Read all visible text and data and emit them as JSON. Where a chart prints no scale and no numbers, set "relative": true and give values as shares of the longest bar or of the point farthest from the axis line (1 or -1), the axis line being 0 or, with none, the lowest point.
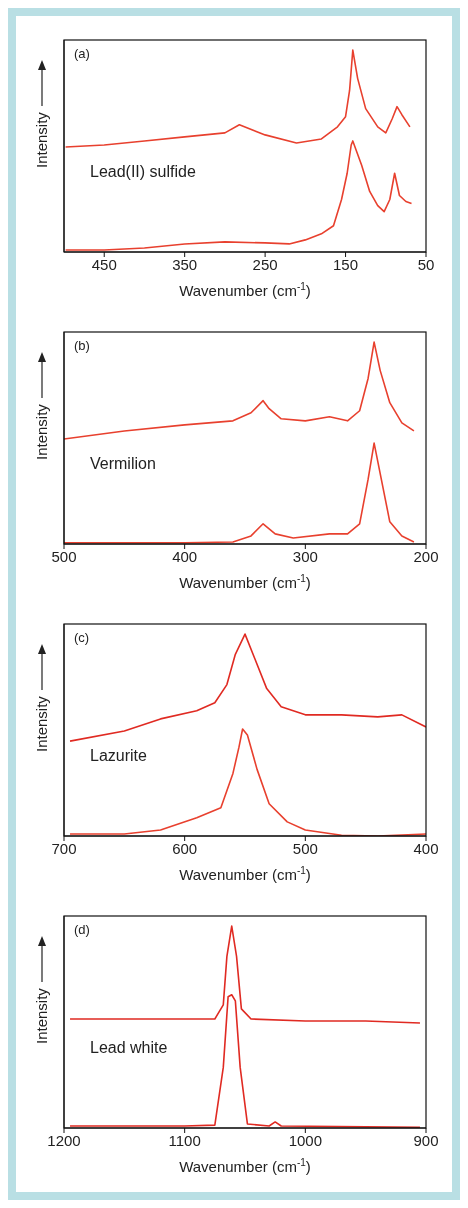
{
  "chart_data": [
    {
      "type": "line",
      "relative": true,
      "xlabel": "Wavenumber (cm$^{-1}$)",
      "ylabel": "Intensity",
      "annotations": [
        "(a)",
        "Lead(II) sulfide"
      ],
      "xlim": [
        500,
        50
      ],
      "xticks": [
        450,
        350,
        250,
        150,
        50
      ],
      "series": [
        {
          "color": "#e8402e",
          "x": [
            498,
            450,
            400,
            350,
            300,
            282,
            250,
            211,
            180,
            160,
            150,
            145,
            141,
            135,
            125,
            110,
            100,
            92,
            86,
            80,
            70
          ],
          "values": [
            0.52,
            0.53,
            0.55,
            0.57,
            0.59,
            0.63,
            0.58,
            0.54,
            0.56,
            0.62,
            0.67,
            0.8,
            1,
            0.86,
            0.71,
            0.62,
            0.59,
            0.66,
            0.72,
            0.68,
            0.62
          ]
        },
        {
          "color": "#e8402e",
          "x": [
            498,
            450,
            400,
            350,
            300,
            250,
            220,
            200,
            180,
            165,
            155,
            148,
            143,
            141,
            130,
            120,
            110,
            102,
            95,
            89,
            83,
            75,
            68
          ],
          "values": [
            0.01,
            0.01,
            0.02,
            0.04,
            0.05,
            0.045,
            0.04,
            0.06,
            0.09,
            0.13,
            0.26,
            0.39,
            0.53,
            0.55,
            0.43,
            0.3,
            0.23,
            0.2,
            0.26,
            0.39,
            0.28,
            0.25,
            0.24
          ]
        }
      ]
    },
    {
      "type": "line",
      "relative": true,
      "xlabel": "Wavenumber (cm$^{-1}$)",
      "ylabel": "Intensity",
      "annotations": [
        "(b)",
        "Vermilion"
      ],
      "xlim": [
        500,
        200
      ],
      "xticks": [
        500,
        400,
        300,
        200
      ],
      "series": [
        {
          "color": "#e8402e",
          "x": [
            500,
            450,
            400,
            360,
            345,
            335,
            330,
            320,
            300,
            280,
            265,
            255,
            248,
            243,
            238,
            230,
            220,
            210
          ],
          "values": [
            0.52,
            0.56,
            0.59,
            0.61,
            0.65,
            0.71,
            0.67,
            0.62,
            0.61,
            0.63,
            0.61,
            0.66,
            0.82,
            1,
            0.86,
            0.7,
            0.6,
            0.56
          ]
        },
        {
          "color": "#e8402e",
          "x": [
            500,
            400,
            360,
            345,
            335,
            325,
            310,
            280,
            265,
            255,
            248,
            243,
            238,
            230,
            220,
            210
          ],
          "values": [
            0.006,
            0.006,
            0.01,
            0.04,
            0.1,
            0.05,
            0.03,
            0.05,
            0.05,
            0.1,
            0.32,
            0.5,
            0.35,
            0.11,
            0.04,
            0.01
          ]
        }
      ]
    },
    {
      "type": "line",
      "relative": true,
      "xlabel": "Wavenumber (cm$^{-1}$)",
      "ylabel": "Intensity",
      "annotations": [
        "(c)",
        "Lazurite"
      ],
      "xlim": [
        700,
        400
      ],
      "xticks": [
        700,
        600,
        500,
        400
      ],
      "series": [
        {
          "color": "#e02a22",
          "x": [
            695,
            650,
            620,
            590,
            575,
            565,
            558,
            550,
            542,
            532,
            520,
            500,
            470,
            440,
            420,
            400
          ],
          "values": [
            0.47,
            0.52,
            0.58,
            0.62,
            0.66,
            0.75,
            0.9,
            1,
            0.88,
            0.73,
            0.64,
            0.6,
            0.6,
            0.59,
            0.6,
            0.54
          ]
        },
        {
          "color": "#e8402e",
          "x": [
            695,
            650,
            620,
            590,
            570,
            560,
            555,
            552,
            548,
            540,
            530,
            515,
            500,
            470,
            440,
            400
          ],
          "values": [
            0.01,
            0.01,
            0.03,
            0.09,
            0.14,
            0.31,
            0.44,
            0.53,
            0.5,
            0.33,
            0.16,
            0.07,
            0.03,
            0.004,
            0,
            0.01
          ]
        }
      ]
    },
    {
      "type": "line",
      "relative": true,
      "xlabel": "Wavenumber (cm$^{-1}$)",
      "ylabel": "Intensity",
      "annotations": [
        "(d)",
        "Lead white"
      ],
      "xlim": [
        1200,
        900
      ],
      "xticks": [
        1200,
        1100,
        1000,
        900
      ],
      "series": [
        {
          "color": "#e02a22",
          "x": [
            1195,
            1150,
            1100,
            1075,
            1068,
            1065,
            1061,
            1057,
            1053,
            1045,
            1000,
            950,
            905
          ],
          "values": [
            0.54,
            0.54,
            0.54,
            0.54,
            0.61,
            0.85,
            1,
            0.85,
            0.59,
            0.54,
            0.53,
            0.53,
            0.52
          ]
        },
        {
          "color": "#e02a22",
          "x": [
            1195,
            1100,
            1075,
            1068,
            1064,
            1061,
            1058,
            1054,
            1048,
            1030,
            1025,
            1020,
            950,
            905
          ],
          "values": [
            0.01,
            0.01,
            0.014,
            0.3,
            0.65,
            0.66,
            0.63,
            0.3,
            0.02,
            0.01,
            0.03,
            0.01,
            0.006,
            0.004
          ]
        }
      ]
    }
  ]
}
